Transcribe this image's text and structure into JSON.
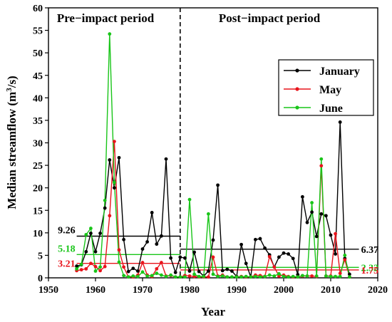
{
  "chart_data": {
    "type": "line",
    "xlabel": "Year",
    "ylabel": "Median streamflow (m",
    "ylabel_sup": "3",
    "ylabel_tail": "/s)",
    "xlim": [
      1950,
      2020
    ],
    "ylim": [
      0,
      60
    ],
    "xticks": [
      1950,
      1960,
      1970,
      1980,
      1990,
      2000,
      2010,
      2020
    ],
    "yticks": [
      0,
      5,
      10,
      15,
      20,
      25,
      30,
      35,
      40,
      45,
      50,
      55,
      60
    ],
    "grid": false,
    "legend_position": "top-right",
    "period_divider_year": 1978,
    "period_labels": [
      "Pre−impact period",
      "Post−impact period"
    ],
    "colors": {
      "January": "#000000",
      "May": "#e8141c",
      "June": "#19c519"
    },
    "series": [
      {
        "name": "January",
        "x": [
          1956,
          1957,
          1958,
          1959,
          1960,
          1961,
          1962,
          1963,
          1964,
          1965,
          1966,
          1967,
          1968,
          1969,
          1970,
          1971,
          1972,
          1973,
          1974,
          1975,
          1976,
          1977,
          1978,
          1979,
          1980,
          1981,
          1982,
          1983,
          1984,
          1985,
          1986,
          1987,
          1988,
          1989,
          1990,
          1991,
          1992,
          1993,
          1994,
          1995,
          1996,
          1997,
          1998,
          1999,
          2000,
          2001,
          2002,
          2003,
          2004,
          2005,
          2006,
          2007,
          2008,
          2009,
          2010,
          2011,
          2012,
          2013,
          2014
        ],
        "values": [
          2.6,
          2.9,
          5.8,
          9.9,
          5.8,
          9.9,
          15.5,
          26.2,
          20.0,
          26.7,
          8.5,
          1.4,
          2.1,
          1.5,
          6.4,
          8.0,
          14.5,
          7.5,
          9.3,
          26.4,
          4.4,
          1.2,
          4.6,
          4.4,
          1.5,
          5.7,
          1.4,
          0.4,
          1.5,
          8.4,
          20.6,
          1.6,
          1.9,
          1.5,
          0.3,
          7.4,
          3.2,
          0.2,
          8.5,
          8.7,
          6.6,
          5.1,
          2.4,
          4.6,
          5.5,
          5.3,
          4.3,
          0.7,
          18.0,
          12.3,
          14.6,
          9.2,
          14.2,
          13.8,
          9.5,
          5.3,
          34.6,
          4.3,
          0.8
        ]
      },
      {
        "name": "May",
        "x": [
          1956,
          1957,
          1958,
          1959,
          1960,
          1961,
          1962,
          1963,
          1964,
          1965,
          1966,
          1967,
          1968,
          1969,
          1970,
          1971,
          1972,
          1973,
          1974,
          1975,
          1976,
          1977,
          1978,
          1979,
          1980,
          1981,
          1982,
          1983,
          1984,
          1985,
          1986,
          1987,
          1988,
          1989,
          1990,
          1991,
          1992,
          1993,
          1994,
          1995,
          1996,
          1997,
          1998,
          1999,
          2000,
          2001,
          2002,
          2003,
          2004,
          2005,
          2006,
          2007,
          2008,
          2009,
          2010,
          2011,
          2012,
          2013,
          2014
        ],
        "values": [
          1.6,
          1.8,
          2.0,
          3.2,
          2.5,
          1.6,
          2.5,
          13.8,
          30.3,
          6.2,
          2.4,
          0.2,
          0.2,
          0.6,
          3.4,
          0.6,
          0.3,
          2.0,
          3.4,
          0.4,
          0.5,
          0.2,
          0.2,
          0.5,
          0.4,
          0.3,
          0.2,
          0.2,
          0.2,
          4.6,
          0.4,
          0.6,
          0.2,
          0.2,
          0.2,
          0.3,
          0.2,
          0.2,
          0.6,
          0.5,
          0.3,
          4.7,
          2.4,
          0.4,
          0.6,
          0.3,
          0.2,
          0.2,
          0.4,
          0.4,
          0.4,
          0.3,
          24.9,
          0.4,
          0.4,
          9.8,
          1.0,
          4.0,
          0.2
        ]
      },
      {
        "name": "June",
        "x": [
          1956,
          1957,
          1958,
          1959,
          1960,
          1961,
          1962,
          1963,
          1964,
          1965,
          1966,
          1967,
          1968,
          1969,
          1970,
          1971,
          1972,
          1973,
          1974,
          1975,
          1976,
          1977,
          1978,
          1979,
          1980,
          1981,
          1982,
          1983,
          1984,
          1985,
          1986,
          1987,
          1988,
          1989,
          1990,
          1991,
          1992,
          1993,
          1994,
          1995,
          1996,
          1997,
          1998,
          1999,
          2000,
          2001,
          2002,
          2003,
          2004,
          2005,
          2006,
          2007,
          2008,
          2009,
          2010,
          2011,
          2012,
          2013,
          2014
        ],
        "values": [
          2.0,
          3.0,
          9.6,
          11.0,
          1.5,
          2.4,
          17.2,
          54.2,
          21.2,
          3.5,
          0.5,
          0.2,
          0.4,
          0.3,
          1.3,
          0.4,
          0.5,
          1.0,
          0.6,
          0.3,
          0.6,
          0.2,
          0.2,
          0.2,
          17.4,
          0.8,
          0.3,
          0.3,
          14.2,
          0.8,
          0.3,
          0.4,
          0.2,
          0.2,
          0.2,
          0.2,
          0.3,
          0.2,
          0.3,
          0.2,
          0.3,
          0.6,
          0.4,
          0.9,
          0.3,
          0.2,
          0.3,
          0.2,
          0.5,
          0.4,
          16.7,
          0.4,
          26.4,
          0.4,
          0.3,
          0.3,
          0.3,
          5.0,
          0.2
        ]
      }
    ],
    "mean_lines": [
      {
        "series": "January",
        "period": "pre",
        "x_range": [
          1956,
          1978
        ],
        "value": 9.26,
        "label": "9.26"
      },
      {
        "series": "January",
        "period": "post",
        "x_range": [
          1978,
          2016
        ],
        "value": 6.37,
        "label": "6.37"
      },
      {
        "series": "June",
        "period": "pre",
        "x_range": [
          1956,
          1978
        ],
        "value": 5.18,
        "label": "5.18"
      },
      {
        "series": "June",
        "period": "post",
        "x_range": [
          1978,
          2016
        ],
        "value": 2.32,
        "label": "2.32"
      },
      {
        "series": "May",
        "period": "pre",
        "x_range": [
          1956,
          1978
        ],
        "value": 3.21,
        "label": "3.21"
      },
      {
        "series": "May",
        "period": "post",
        "x_range": [
          1978,
          2016
        ],
        "value": 1.75,
        "label": "1.75"
      }
    ]
  }
}
